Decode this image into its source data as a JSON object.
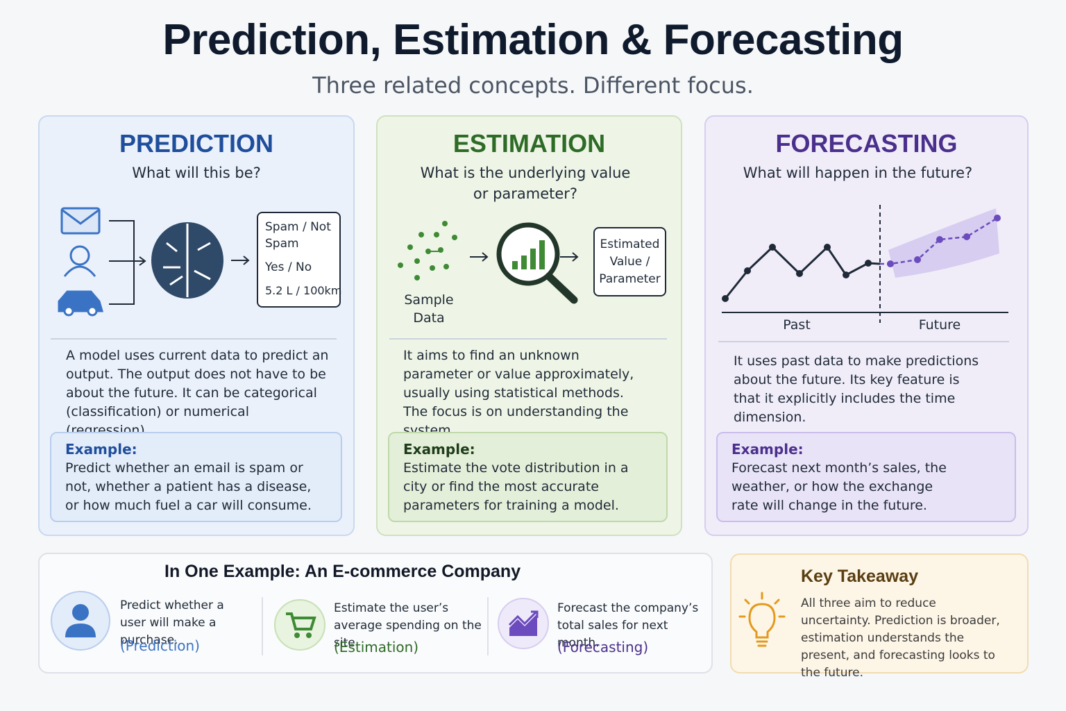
{
  "header": {
    "title": "Prediction, Estimation & Forecasting",
    "subtitle": "Three related concepts. Different focus."
  },
  "cards": [
    {
      "title": "PREDICTION",
      "question": "What will this be?",
      "outputs": [
        "Spam / Not Spam",
        "Yes / No",
        "5.2 L / 100km"
      ],
      "description": "A model uses current data to predict an output. The output does not have to be about the future. It can be categorical (classification) or numerical (regression).",
      "example_label": "Example:",
      "example": "Predict whether an email is spam or not, whether a patient has a disease, or how much fuel a car will consume."
    },
    {
      "title": "ESTIMATION",
      "question": "What is the underlying value or parameter?",
      "input": "Sample Data",
      "output": "Estimated Value / Parameter",
      "description": "It aims to find an unknown parameter or value approximately, usually using statistical methods. The focus is on understanding the system.",
      "example_label": "Example:",
      "example": "Estimate the vote distribution in a city or find the most accurate parameters for training a model."
    },
    {
      "title": "FORECASTING",
      "question": "What will happen in the future?",
      "axis_labels": [
        "Past",
        "Future"
      ],
      "description": "It uses past data to make predictions about the future. Its key feature is that it explicitly includes the time dimension.",
      "example_label": "Example:",
      "example": "Forecast next month’s sales, the weather, or how the exchange rate will change in the future."
    }
  ],
  "ecommerce": {
    "title": "In One Example: An E-commerce Company",
    "items": [
      {
        "text": "Predict whether a user will make a purchase.",
        "tag": "(Prediction)"
      },
      {
        "text": "Estimate the user’s average spending on the site.",
        "tag": "(Estimation)"
      },
      {
        "text": "Forecast the company’s total sales for next month.",
        "tag": "(Forecasting)"
      }
    ]
  },
  "takeaway": {
    "title": "Key Takeaway",
    "text": "All three aim to reduce uncertainty. Prediction is broader, estimation understands the present, and forecasting looks to the future."
  }
}
